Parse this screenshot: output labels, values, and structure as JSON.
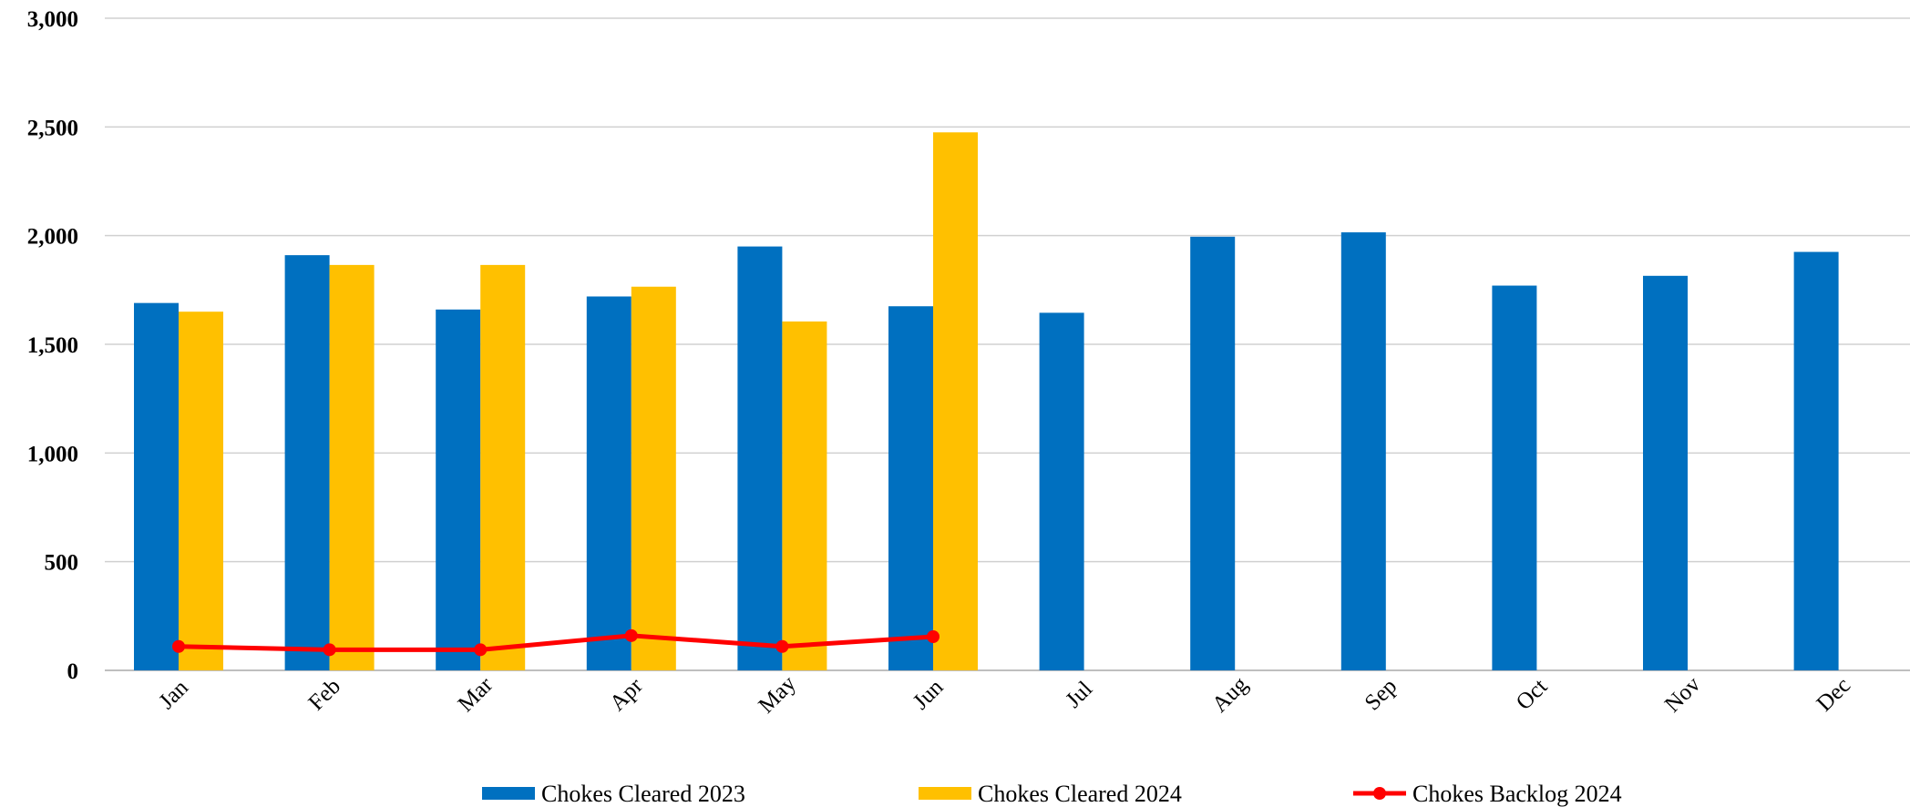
{
  "chart_data": {
    "type": "bar",
    "categories": [
      "Jan",
      "Feb",
      "Mar",
      "Apr",
      "May",
      "Jun",
      "Jul",
      "Aug",
      "Sep",
      "Oct",
      "Nov",
      "Dec"
    ],
    "series": [
      {
        "name": "Chokes Cleared 2023",
        "type": "bar",
        "color": "#0070C0",
        "values": [
          1690,
          1910,
          1660,
          1720,
          1950,
          1675,
          1645,
          1995,
          2015,
          1770,
          1815,
          1925
        ]
      },
      {
        "name": "Chokes Cleared 2024",
        "type": "bar",
        "color": "#FFC000",
        "values": [
          1650,
          1865,
          1865,
          1765,
          1605,
          2475,
          null,
          null,
          null,
          null,
          null,
          null
        ]
      },
      {
        "name": "Chokes Backlog 2024",
        "type": "line",
        "color": "#FF0000",
        "values": [
          110,
          95,
          95,
          160,
          110,
          155,
          null,
          null,
          null,
          null,
          null,
          null
        ]
      }
    ],
    "ylim": [
      0,
      3000
    ],
    "yticks": [
      0,
      500,
      1000,
      1500,
      2000,
      2500,
      3000
    ],
    "ytick_labels": [
      "0",
      "500",
      "1,000",
      "1,500",
      "2,000",
      "2,500",
      "3,000"
    ],
    "grid": true,
    "legend_position": "bottom"
  }
}
